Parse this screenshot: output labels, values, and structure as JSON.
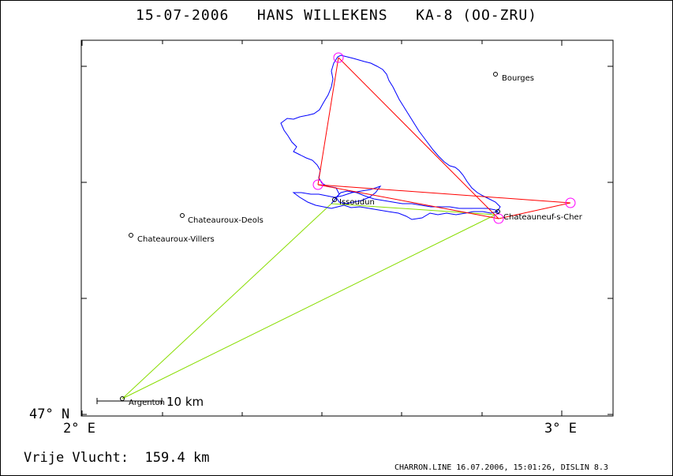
{
  "title": "15-07-2006   HANS WILLEKENS   KA-8 (OO-ZRU)",
  "axes": {
    "y_min_label": "47° N",
    "x_min_label": "2° E",
    "x_max_label": "3° E"
  },
  "scale_bar": {
    "label": "10 km"
  },
  "distance": {
    "label": "Vrije Vlucht:",
    "value": "159.4 km"
  },
  "footer": "CHARRON.LINE 16.07.2006, 15:01:26, DISLIN 8.3",
  "colors": {
    "track": "#0000ff",
    "task": "#ff0000",
    "start_legs": "#88dd00",
    "turnpoint": "#ff00ff"
  },
  "cities": [
    {
      "name": "Bourges"
    },
    {
      "name": "Chateauroux-Deols"
    },
    {
      "name": "Chateauroux-Villers"
    },
    {
      "name": "Chateauneuf-s-Cher"
    },
    {
      "name": "Issoudun"
    },
    {
      "name": "Argenton"
    }
  ]
}
